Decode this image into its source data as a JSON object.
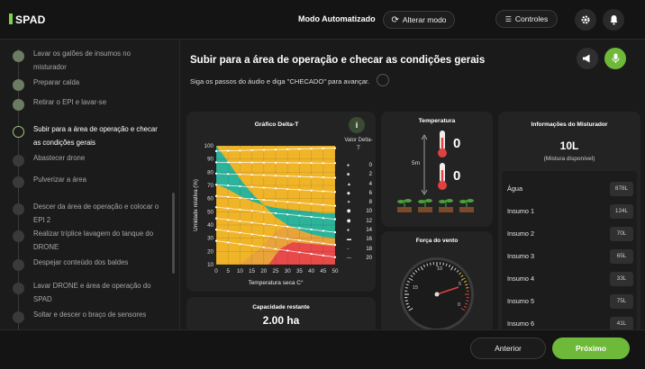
{
  "header": {
    "app_name": "SPAD",
    "mode_label": "Modo Automatizado",
    "alter_mode_label": "Alterar modo",
    "controls_label": "Controles"
  },
  "sidebar": {
    "steps": [
      {
        "label": "Lavar os galões de insumos no misturador",
        "state": "done"
      },
      {
        "label": "Preparar calda",
        "state": "done"
      },
      {
        "label": "Retirar o EPI e lavar-se",
        "state": "done"
      },
      {
        "label": "Subir para a área de operação e checar as condições gerais",
        "state": "active"
      },
      {
        "label": "Abastecer drone",
        "state": "pending"
      },
      {
        "label": "Pulverizar a área",
        "state": "pending"
      },
      {
        "label": "Descer da área de operação e colocar o EPI 2",
        "state": "pending"
      },
      {
        "label": "Realizar tríplice lavagem do tanque do DRONE",
        "state": "pending"
      },
      {
        "label": "Despejar conteúdo dos baldes",
        "state": "pending"
      },
      {
        "label": "Lavar DRONE e área de operação do SPAD",
        "state": "pending"
      },
      {
        "label": "Soltar e descer o braço de sensores",
        "state": "pending"
      }
    ]
  },
  "main": {
    "title": "Subir para a área de operação e checar as condições gerais",
    "subtitle": "Siga os passos do áudio e diga \"CHECADO\" para avançar."
  },
  "delta_t": {
    "title": "Gráfico Delta-T",
    "info_icon": "info-icon",
    "legend_title": "Valor Delta-T",
    "legend_values": [
      "0",
      "2",
      "4",
      "6",
      "8",
      "10",
      "12",
      "14",
      "16",
      "18",
      "20"
    ],
    "ylabel": "Umidade relativa (%)",
    "xlabel": "Temperatura seca C°"
  },
  "chart_data": {
    "type": "area",
    "title": "Gráfico Delta-T",
    "xlabel": "Temperatura seca C°",
    "ylabel": "Umidade relativa (%)",
    "xlim": [
      0,
      50
    ],
    "ylim": [
      10,
      100
    ],
    "x_ticks": [
      0,
      5,
      10,
      15,
      20,
      25,
      30,
      35,
      40,
      45,
      50
    ],
    "y_ticks": [
      10,
      20,
      30,
      40,
      50,
      60,
      70,
      80,
      90,
      100
    ],
    "grid": true,
    "legend_placement": "right",
    "zones": [
      {
        "color": "#f0b429"
      },
      {
        "color": "#2db39a"
      },
      {
        "color": "#e8a33a"
      },
      {
        "color": "#e84a4a"
      }
    ],
    "colors": {
      "yellow": "#f0b429",
      "green": "#2db39a",
      "orange": "#e8a33a",
      "red": "#e84a4a"
    }
  },
  "capacity": {
    "title": "Capacidade restante",
    "value": "2.00 ha"
  },
  "temperature": {
    "title": "Temperatura",
    "height_label": "5m",
    "value_top": "0",
    "value_bottom": "0"
  },
  "wind": {
    "title": "Força do vento",
    "tick_15": "15",
    "tick_10": "10",
    "tick_5": "5",
    "tick_0": "0"
  },
  "mixer": {
    "title": "Informações do Misturador",
    "volume": "10L",
    "volume_caption": "(Mistura disponível)",
    "rows": [
      {
        "label": "Água",
        "value": "878L"
      },
      {
        "label": "Insumo 1",
        "value": "124L"
      },
      {
        "label": "Insumo 2",
        "value": "70L"
      },
      {
        "label": "Insumo 3",
        "value": "65L"
      },
      {
        "label": "Insumo 4",
        "value": "33L"
      },
      {
        "label": "Insumo 5",
        "value": "75L"
      },
      {
        "label": "Insumo 6",
        "value": "41L"
      }
    ]
  },
  "footer": {
    "previous_label": "Anterior",
    "next_label": "Próximo"
  },
  "colors": {
    "accent_green": "#6fb93a",
    "background": "#1a1a1a",
    "card": "#232323"
  }
}
